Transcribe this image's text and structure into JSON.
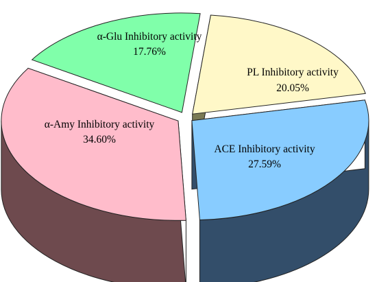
{
  "chart_data": {
    "type": "pie",
    "title": "",
    "slices": [
      {
        "label": "α-Glu Inhibitory activity",
        "value": 17.76,
        "value_label": "17.76%",
        "top_color": "#80ffaa",
        "side_color": "#3a7a4e"
      },
      {
        "label": "PL Inhibitory activity",
        "value": 20.05,
        "value_label": "20.05%",
        "top_color": "#fff8c8",
        "side_color": "#7a7a55"
      },
      {
        "label": "ACE Inhibitory activity",
        "value": 27.59,
        "value_label": "27.59%",
        "top_color": "#88ccff",
        "side_color": "#334e6a"
      },
      {
        "label": "α-Amy Inhibitory activity",
        "value": 34.6,
        "value_label": "34.60%",
        "top_color": "#ffbccb",
        "side_color": "#6e4a4e"
      }
    ],
    "legend": "none",
    "style": "3d-exploded"
  }
}
